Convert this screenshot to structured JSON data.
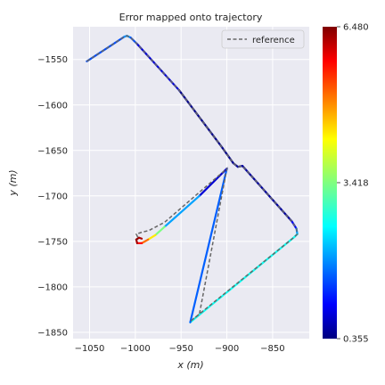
{
  "chart_data": {
    "type": "line",
    "title": "Error mapped onto trajectory",
    "xlabel": "x (m)",
    "ylabel": "y (m)",
    "xlim": [
      -1068,
      -810
    ],
    "ylim": [
      -1857,
      -1514
    ],
    "x_ticks": [
      -1050,
      -1000,
      -950,
      -900,
      -850
    ],
    "x_tick_labels": [
      "−1050",
      "−1000",
      "−950",
      "−900",
      "−850"
    ],
    "y_ticks": [
      -1550,
      -1600,
      -1650,
      -1700,
      -1750,
      -1800,
      -1850
    ],
    "y_tick_labels": [
      "−1550",
      "−1600",
      "−1650",
      "−1700",
      "−1750",
      "−1800",
      "−1850"
    ],
    "grid": true,
    "legend": {
      "placement": "top-right",
      "entries": [
        "reference"
      ]
    },
    "colorbar": {
      "min": 0.355,
      "max": 6.48,
      "tick_values": [
        0.355,
        3.418,
        6.48
      ],
      "tick_labels": [
        "0.355",
        "3.418",
        "6.480"
      ],
      "colormap": "jet"
    },
    "series": [
      {
        "name": "reference",
        "style": "dashed",
        "color": "#666666",
        "x": [
          -1053,
          -1012,
          -1009,
          -1005,
          -998,
          -952,
          -905,
          -893,
          -888,
          -883,
          -829,
          -824,
          -823,
          -826,
          -940,
          -930,
          -900,
          -968,
          -985,
          -993,
          -999,
          -997
        ],
        "y": [
          -1552,
          -1525,
          -1524,
          -1526,
          -1533,
          -1584,
          -1647,
          -1664,
          -1668,
          -1667,
          -1728,
          -1736,
          -1742,
          -1745,
          -1838,
          -1830,
          -1670,
          -1729,
          -1738,
          -1740,
          -1742,
          -1746
        ]
      },
      {
        "name": "trajectory",
        "style": "solid",
        "colored_by": "error",
        "x": [
          -1053,
          -1012,
          -1009,
          -1005,
          -998,
          -952,
          -905,
          -893,
          -888,
          -883,
          -829,
          -824,
          -823,
          -826,
          -940,
          -900,
          -930,
          -968,
          -978,
          -986,
          -993,
          -998,
          -999,
          -996,
          -993
        ],
        "y": [
          -1552,
          -1525,
          -1524,
          -1526,
          -1533,
          -1584,
          -1647,
          -1664,
          -1668,
          -1667,
          -1728,
          -1736,
          -1742,
          -1745,
          -1839,
          -1670,
          -1700,
          -1734,
          -1743,
          -1748,
          -1752,
          -1752,
          -1748,
          -1746,
          -1747
        ],
        "error": [
          1.2,
          1.8,
          2.0,
          1.8,
          1.2,
          0.5,
          0.4,
          0.5,
          0.5,
          0.5,
          0.6,
          1.5,
          2.3,
          2.5,
          2.8,
          0.4,
          1.2,
          2.8,
          4.0,
          4.8,
          5.5,
          6.1,
          6.48,
          6.3,
          6.2
        ]
      }
    ]
  }
}
